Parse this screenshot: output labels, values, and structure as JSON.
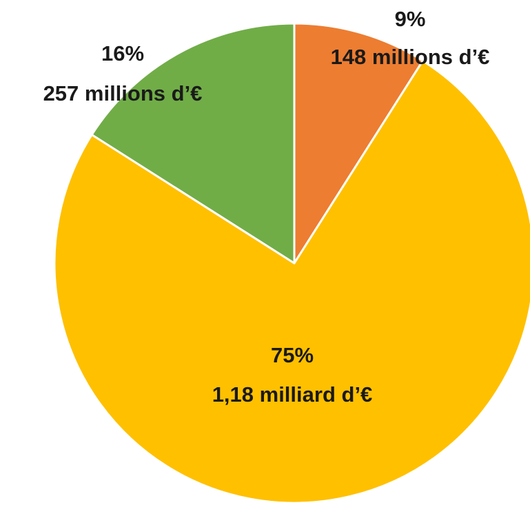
{
  "chart_data": {
    "type": "pie",
    "values": [
      9,
      75,
      16
    ],
    "value_labels": [
      "9%",
      "75%",
      "16%"
    ],
    "annotations": [
      "148 millions d’€",
      "1,18 milliard d’€",
      "257 millions d’€"
    ],
    "colors": [
      "#ED7D31",
      "#FFC000",
      "#70AD47"
    ]
  }
}
